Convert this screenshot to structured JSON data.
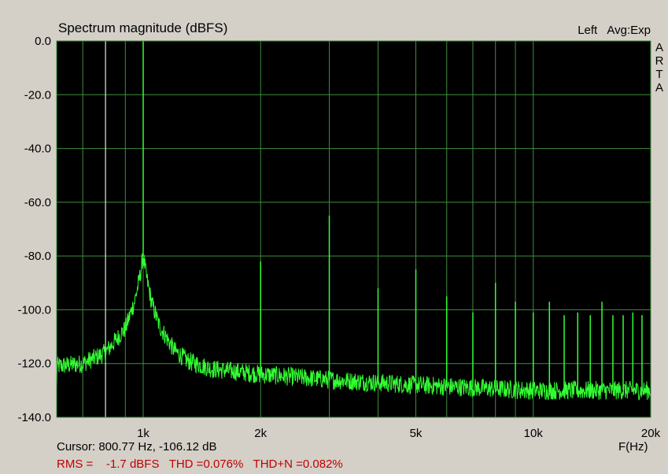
{
  "chart_data": {
    "type": "line",
    "title": "Spectrum magnitude (dBFS)",
    "channel": "Left",
    "averaging": "Avg:Exp",
    "brand": "ARTA",
    "xlabel": "F(Hz)",
    "x_scale": "log",
    "xlim": [
      600,
      20000
    ],
    "ylim": [
      -140,
      0
    ],
    "y_ticks": [
      "0.0",
      "-20.0",
      "-40.0",
      "-60.0",
      "-80.0",
      "-100.0",
      "-120.0",
      "-140.0"
    ],
    "x_ticks": [
      {
        "value": 1000,
        "label": "1k"
      },
      {
        "value": 2000,
        "label": "2k"
      },
      {
        "value": 5000,
        "label": "5k"
      },
      {
        "value": 10000,
        "label": "10k"
      },
      {
        "value": 20000,
        "label": "20k"
      }
    ],
    "grid": true,
    "noise_floor": [
      [
        600,
        -121
      ],
      [
        700,
        -120
      ],
      [
        800,
        -116
      ],
      [
        900,
        -107
      ],
      [
        950,
        -97
      ],
      [
        980,
        -88
      ],
      [
        1000,
        -80
      ],
      [
        1020,
        -88
      ],
      [
        1050,
        -97
      ],
      [
        1100,
        -106
      ],
      [
        1200,
        -115
      ],
      [
        1300,
        -119
      ],
      [
        1500,
        -122
      ],
      [
        2000,
        -124
      ],
      [
        3000,
        -126
      ],
      [
        5000,
        -128
      ],
      [
        10000,
        -130
      ],
      [
        20000,
        -130
      ]
    ],
    "harmonics": [
      {
        "f": 1000,
        "db": 0.0
      },
      {
        "f": 2000,
        "db": -82
      },
      {
        "f": 3000,
        "db": -65
      },
      {
        "f": 4000,
        "db": -92
      },
      {
        "f": 5000,
        "db": -85
      },
      {
        "f": 6000,
        "db": -95
      },
      {
        "f": 7000,
        "db": -101
      },
      {
        "f": 8000,
        "db": -90
      },
      {
        "f": 9000,
        "db": -97
      },
      {
        "f": 10000,
        "db": -101
      },
      {
        "f": 11000,
        "db": -97
      },
      {
        "f": 12000,
        "db": -102
      },
      {
        "f": 13000,
        "db": -101
      },
      {
        "f": 14000,
        "db": -102
      },
      {
        "f": 15000,
        "db": -97
      },
      {
        "f": 16000,
        "db": -102
      },
      {
        "f": 17000,
        "db": -102
      },
      {
        "f": 18000,
        "db": -101
      },
      {
        "f": 19000,
        "db": -102
      }
    ],
    "cursor": {
      "f": 800.77,
      "db": -106.12
    },
    "colors": {
      "background": "#000000",
      "grid": "#3f8f3f",
      "trace": "#33ff33",
      "cursor": "#ffffff",
      "stats": "#c00000"
    }
  },
  "readout": {
    "cursor_text": "Cursor: 800.77 Hz, -106.12 dB",
    "stats_text": "RMS =    -1.7 dBFS   THD =0.076%   THD+N =0.082%"
  }
}
